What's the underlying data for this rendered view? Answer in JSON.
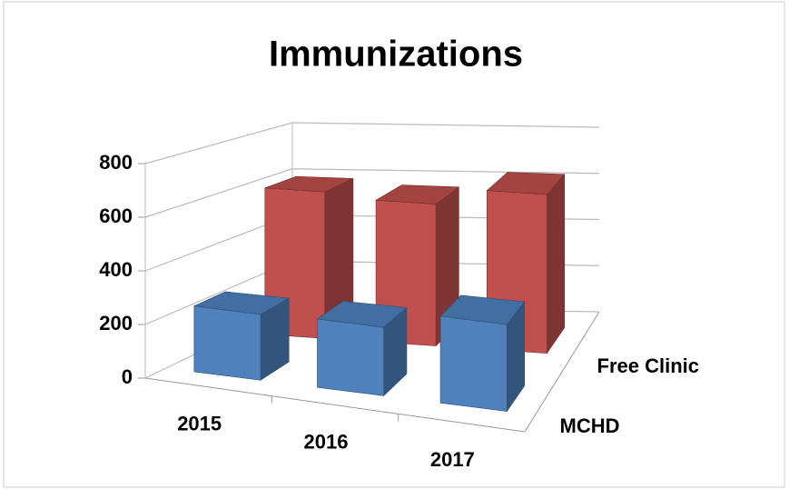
{
  "chart_data": {
    "type": "bar3d",
    "title": "Immunizations",
    "categories": [
      "2015",
      "2016",
      "2017"
    ],
    "series": [
      {
        "name": "MCHD",
        "color": "#4f81bd",
        "values": [
          250,
          260,
          330
        ]
      },
      {
        "name": "Free Clinic",
        "color": "#c0504d",
        "values": [
          600,
          580,
          650
        ]
      }
    ],
    "ylim": [
      0,
      800
    ],
    "yticks": [
      0,
      200,
      400,
      600,
      800
    ],
    "grid": true
  }
}
